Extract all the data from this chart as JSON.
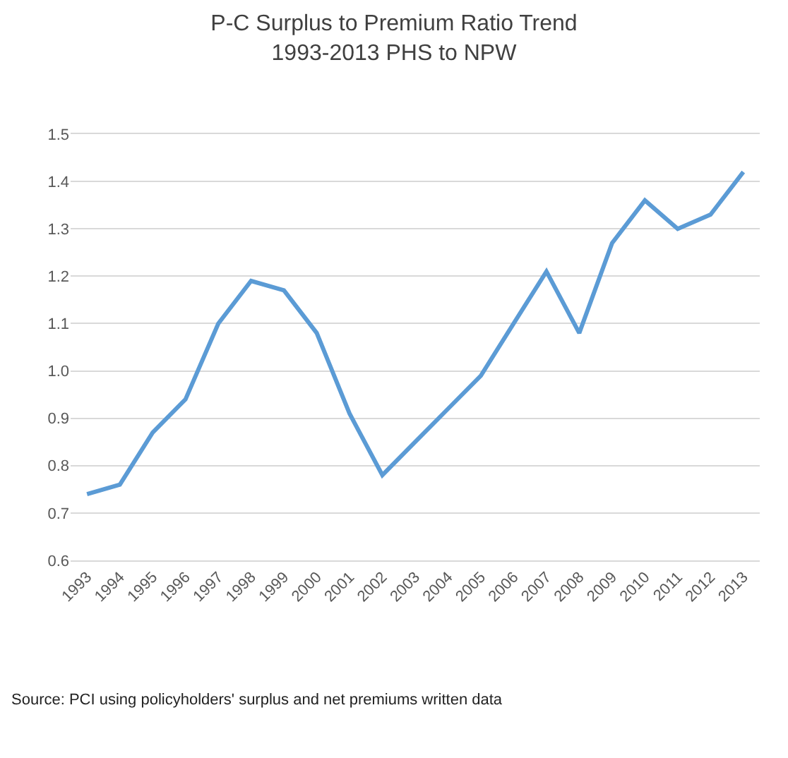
{
  "chart_data": {
    "type": "line",
    "title": "P-C Surplus to Premium Ratio Trend\n1993-2013 PHS to NPW",
    "categories": [
      "1993",
      "1994",
      "1995",
      "1996",
      "1997",
      "1998",
      "1999",
      "2000",
      "2001",
      "2002",
      "2003",
      "2004",
      "2005",
      "2006",
      "2007",
      "2008",
      "2009",
      "2010",
      "2011",
      "2012",
      "2013"
    ],
    "series": [
      {
        "color": "#5b9bd5",
        "values": [
          0.74,
          0.76,
          0.87,
          0.94,
          1.1,
          1.19,
          1.17,
          1.08,
          0.91,
          0.78,
          0.85,
          0.92,
          0.99,
          1.1,
          1.21,
          1.08,
          1.27,
          1.36,
          1.3,
          1.33,
          1.42
        ]
      }
    ],
    "ylim": [
      0.6,
      1.5
    ],
    "yticks": [
      {
        "value": 0.6,
        "label": "0.6"
      },
      {
        "value": 0.7,
        "label": "0.7"
      },
      {
        "value": 0.8,
        "label": "0.8"
      },
      {
        "value": 0.9,
        "label": "0.9"
      },
      {
        "value": 1.0,
        "label": "1.0"
      },
      {
        "value": 1.1,
        "label": "1.1"
      },
      {
        "value": 1.2,
        "label": "1.2"
      },
      {
        "value": 1.3,
        "label": "1.3"
      },
      {
        "value": 1.4,
        "label": "1.4"
      },
      {
        "value": 1.5,
        "label": "1.5"
      }
    ],
    "grid": "y",
    "marker": "none",
    "line_style": "solid",
    "annotations": [
      "Source: PCI using policyholders' surplus and net premiums written data"
    ]
  }
}
